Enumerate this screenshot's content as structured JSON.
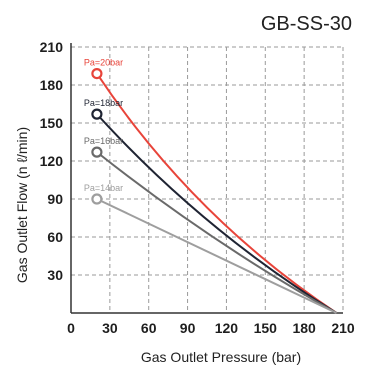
{
  "chart_data": {
    "type": "line",
    "title": "GB-SS-30",
    "xlabel": "Gas Outlet Pressure (bar)",
    "ylabel": "Gas Outlet Flow (n ℓ/min)",
    "xlim": [
      0,
      210
    ],
    "ylim": [
      0,
      210
    ],
    "x_ticks": [
      0,
      30,
      60,
      90,
      120,
      150,
      180,
      210
    ],
    "y_ticks": [
      30,
      60,
      90,
      120,
      150,
      180,
      210
    ],
    "grid": true,
    "series": [
      {
        "name": "Pa=20bar",
        "color": "#e8443a",
        "x": [
          20,
          205
        ],
        "y": [
          189,
          0
        ],
        "curve": 0.1
      },
      {
        "name": "Pa=18bar",
        "color": "#1f2433",
        "x": [
          20,
          205
        ],
        "y": [
          157,
          0
        ],
        "curve": 0.07
      },
      {
        "name": "Pa=16bar",
        "color": "#6a6a6a",
        "x": [
          20,
          205
        ],
        "y": [
          127,
          0
        ],
        "curve": 0.04
      },
      {
        "name": "Pa=14bar",
        "color": "#9e9e9e",
        "x": [
          20,
          205
        ],
        "y": [
          90,
          0
        ],
        "curve": 0.0
      }
    ]
  }
}
